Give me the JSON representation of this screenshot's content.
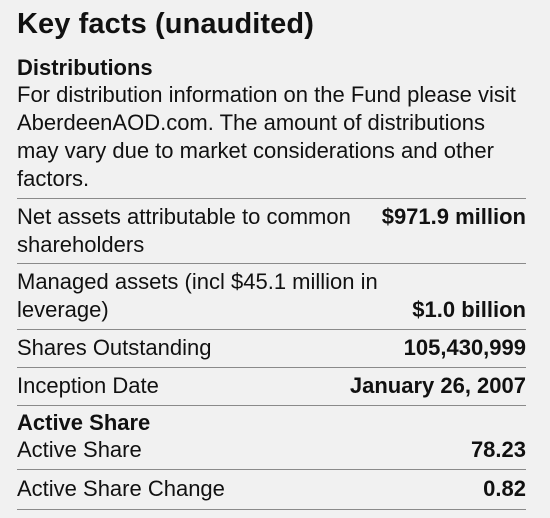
{
  "title": "Key facts (unaudited)",
  "distributions": {
    "heading": "Distributions",
    "text": "For distribution information on the Fund please visit AberdeenAOD.com. The amount of distributions may vary due to market considerations and other factors."
  },
  "facts": [
    {
      "label": "Net assets attributable to common shareholders",
      "value": "$971.9 million"
    },
    {
      "label": "Managed assets (incl $45.1 million in leverage)",
      "value": "$1.0 billion"
    },
    {
      "label": "Shares Outstanding",
      "value": "105,430,999"
    },
    {
      "label": "Inception Date",
      "value": "January 26, 2007"
    }
  ],
  "active_share": {
    "heading": "Active Share",
    "rows": [
      {
        "label": "Active Share",
        "value": "78.23"
      },
      {
        "label": "Active Share Change",
        "value": "0.82"
      }
    ]
  }
}
